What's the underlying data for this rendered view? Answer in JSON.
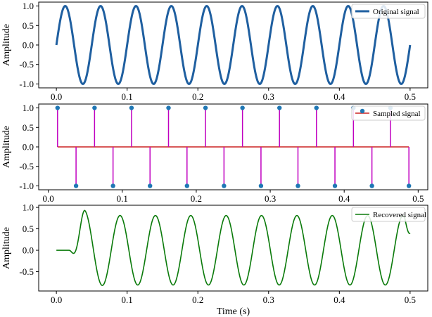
{
  "chart_data": [
    {
      "type": "line",
      "panel": "original",
      "ylabel": "Amplitude",
      "xlabel": "",
      "xlim": [
        -0.025,
        0.525
      ],
      "ylim": [
        -1.1,
        1.1
      ],
      "xticks": [
        "0.0",
        "0.1",
        "0.2",
        "0.3",
        "0.4",
        "0.5"
      ],
      "yticks": [
        "-1.0",
        "-0.5",
        "0.0",
        "0.5",
        "1.0"
      ],
      "legend": {
        "placement": "top-right",
        "label": "Original signal"
      },
      "series": [
        {
          "name": "Original signal",
          "color": "#1f5fa0",
          "function": "sin(2*pi*20*t)",
          "frequency_hz": 20,
          "amplitude": 1,
          "x_range": [
            0,
            0.5
          ]
        }
      ]
    },
    {
      "type": "stem",
      "panel": "sampled",
      "ylabel": "Amplitude",
      "xlabel": "",
      "xlim": [
        -0.013,
        0.513
      ],
      "ylim": [
        -1.1,
        1.1
      ],
      "xticks": [
        "0.0",
        "0.1",
        "0.2",
        "0.3",
        "0.4",
        "0.5"
      ],
      "yticks": [
        "-1.0",
        "-0.5",
        "0.0",
        "0.5",
        "1.0"
      ],
      "legend": {
        "placement": "top-right",
        "label": "Sampled signal"
      },
      "baseline_color": "#cc2222",
      "stem_color": "#c000c0",
      "marker_color": "#1f77b4",
      "series": [
        {
          "name": "Sampled signal",
          "x": [
            0.0125,
            0.0375,
            0.0625,
            0.0875,
            0.1125,
            0.1375,
            0.1625,
            0.1875,
            0.2125,
            0.2375,
            0.2625,
            0.2875,
            0.3125,
            0.3375,
            0.3625,
            0.3875,
            0.4125,
            0.4375,
            0.4625,
            0.4875
          ],
          "values": [
            1,
            -1,
            1,
            -1,
            1,
            -1,
            1,
            -1,
            1,
            -1,
            1,
            -1,
            1,
            -1,
            1,
            -1,
            1,
            -1,
            1,
            -1
          ]
        }
      ]
    },
    {
      "type": "line",
      "panel": "recovered",
      "ylabel": "Amplitude",
      "xlabel": "Time (s)",
      "xlim": [
        -0.025,
        0.525
      ],
      "ylim": [
        -0.95,
        1.05
      ],
      "xticks": [
        "0.0",
        "0.1",
        "0.2",
        "0.3",
        "0.4",
        "0.5"
      ],
      "yticks": [
        "-0.5",
        "0.0",
        "0.5",
        "1.0"
      ],
      "legend": {
        "placement": "top-right",
        "label": "Recovered signal"
      },
      "series": [
        {
          "name": "Recovered signal",
          "color": "#0a7a0a",
          "frequency_hz": 20,
          "steady_amplitude": 0.81,
          "first_peak": 0.93,
          "x_range": [
            0,
            0.5
          ],
          "end_value": 0.4
        }
      ]
    }
  ]
}
